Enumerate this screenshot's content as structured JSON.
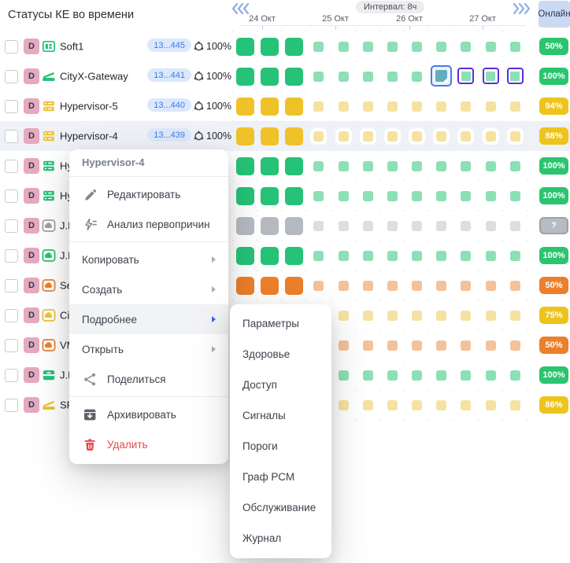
{
  "title": "Статусы КЕ во времени",
  "header": {
    "interval_label": "Интервал: 8ч",
    "dates": [
      "24 Окт",
      "25 Окт",
      "26 Окт",
      "27 Окт"
    ],
    "online_label": "Онлайн",
    "prev_icon": "chevrons-left-icon",
    "next_icon": "chevrons-right-icon"
  },
  "colors": {
    "palette": {
      "green": {
        "strong": "#25c277",
        "pale": "#8ce0b5"
      },
      "yellow": {
        "strong": "#f0c229",
        "pale": "#f6e2a0"
      },
      "gray": {
        "strong": "#b4bac0",
        "pale": "#dcdee1"
      },
      "orange": {
        "strong": "#ec7f2b",
        "pale": "#f4c29a"
      }
    },
    "badge": {
      "green": "#2bc46f",
      "yellow": "#eec41c",
      "orange": "#ec7f2b",
      "gray": "#b7bcc2"
    },
    "selection_border": "#4a7be0",
    "selection_fill": "#61aebd",
    "outline_border": "#5b2fd6",
    "id_pill_bg": "#dbe8fc",
    "id_pill_text": "#3c7bea",
    "d_badge_bg": "#e7a9bd",
    "online_header_bg": "#ccd9f2",
    "danger": "#e5484d"
  },
  "rows": [
    {
      "name": "Soft1",
      "icon": "app-icon",
      "color": "green",
      "id_badge": "13...445",
      "uptime": "100%",
      "status": "green",
      "online": {
        "label": "50%",
        "color": "green"
      }
    },
    {
      "name": "CityX-Gateway",
      "icon": "gateway-icon",
      "color": "green",
      "id_badge": "13...441",
      "uptime": "100%",
      "status": "green",
      "online": {
        "label": "100%",
        "color": "green"
      },
      "selection": {
        "selected_col": 9,
        "outlined_cols": [
          10,
          11,
          12
        ]
      }
    },
    {
      "name": "Hypervisor-5",
      "icon": "server-icon",
      "color": "yellow",
      "id_badge": "13...440",
      "uptime": "100%",
      "status": "yellow",
      "online": {
        "label": "94%",
        "color": "yellow"
      }
    },
    {
      "name": "Hypervisor-4",
      "icon": "server-icon",
      "color": "yellow",
      "id_badge": "13...439",
      "uptime": "100%",
      "status": "yellow",
      "online": {
        "label": "88%",
        "color": "yellow"
      },
      "highlighted": true
    },
    {
      "name": "Hy",
      "icon": "server-icon",
      "color": "green",
      "status": "green",
      "online": {
        "label": "100%",
        "color": "green"
      }
    },
    {
      "name": "Hy",
      "icon": "server-icon",
      "color": "green",
      "status": "green",
      "online": {
        "label": "100%",
        "color": "green"
      }
    },
    {
      "name": "J.D",
      "icon": "cloud-icon",
      "color": "gray",
      "status": "gray",
      "online": {
        "label": "?",
        "color": "gray"
      }
    },
    {
      "name": "J.D",
      "icon": "cloud-icon",
      "color": "green",
      "status": "green",
      "online": {
        "label": "100%",
        "color": "green"
      }
    },
    {
      "name": "Se",
      "icon": "cloud-icon",
      "color": "orange",
      "status": "orange",
      "online": {
        "label": "50%",
        "color": "orange"
      }
    },
    {
      "name": "Cit",
      "icon": "cloud-icon",
      "color": "yellow",
      "status": "yellow",
      "online": {
        "label": "75%",
        "color": "yellow"
      }
    },
    {
      "name": "VM",
      "icon": "cloud-icon",
      "color": "orange",
      "status": "orange",
      "online": {
        "label": "50%",
        "color": "orange"
      }
    },
    {
      "name": "J.D",
      "icon": "drawer-icon",
      "color": "green",
      "status": "green",
      "online": {
        "label": "100%",
        "color": "green"
      }
    },
    {
      "name": "SP",
      "icon": "scanner-icon",
      "color": "yellow",
      "status": "yellow",
      "online": {
        "label": "86%",
        "color": "yellow"
      }
    }
  ],
  "heatmap": {
    "columns_per_row": 12,
    "large_columns": 3,
    "intervals_per_day": 3
  },
  "context_menu": {
    "header": "Hypervisor-4",
    "items": [
      {
        "label": "Редактировать",
        "icon": "pencil-icon"
      },
      {
        "label": "Анализ первопричин",
        "icon": "rca-icon"
      },
      {
        "divider": true
      },
      {
        "label": "Копировать",
        "submenu": true
      },
      {
        "label": "Создать",
        "submenu": true
      },
      {
        "label": "Подробнее",
        "submenu": true,
        "active": true
      },
      {
        "label": "Открыть",
        "submenu": true
      },
      {
        "label": "Поделиться",
        "icon": "share-icon"
      },
      {
        "divider": true
      },
      {
        "label": "Архивировать",
        "icon": "archive-icon"
      },
      {
        "label": "Удалить",
        "icon": "trash-icon",
        "danger": true
      }
    ]
  },
  "submenu": {
    "items": [
      "Параметры",
      "Здоровье",
      "Доступ",
      "Сигналы",
      "Пороги",
      "Граф РСМ",
      "Обслуживание",
      "Журнал"
    ]
  }
}
